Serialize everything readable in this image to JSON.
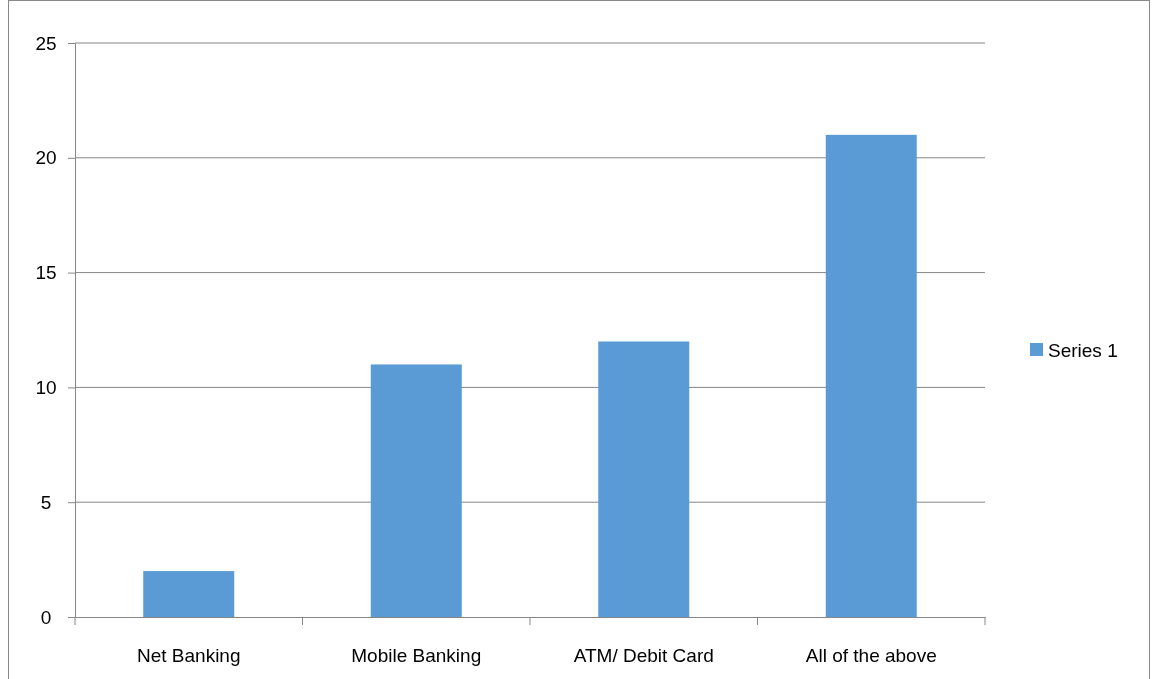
{
  "chart_data": {
    "type": "bar",
    "categories": [
      "Net Banking",
      "Mobile Banking",
      "ATM/ Debit Card",
      "All of the above"
    ],
    "series": [
      {
        "name": "Series 1",
        "color": "#5b9bd5",
        "values": [
          2,
          11,
          12,
          21
        ]
      }
    ],
    "ylim": [
      0,
      25
    ],
    "yticks": [
      0,
      5,
      10,
      15,
      20,
      25
    ],
    "grid": "y",
    "legend": "right"
  }
}
